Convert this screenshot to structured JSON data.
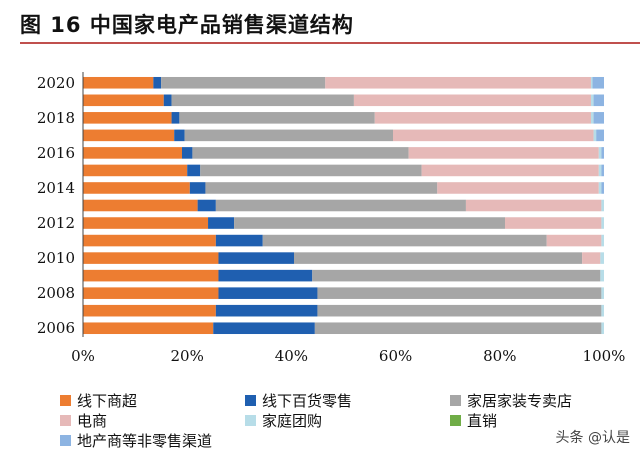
{
  "figure": {
    "title": "图 16 中国家电产品销售渠道结构",
    "watermark": "头条 @认是"
  },
  "colors": {
    "offline_mall": "#ed7d31",
    "offline_dept": "#1f5fb0",
    "appliance_store": "#a6a6a6",
    "ecommerce": "#e6b9b8",
    "group_buy": "#b7dde8",
    "direct": "#70ad47",
    "local_nonretail": "#8db4e2"
  },
  "chart_data": {
    "type": "bar",
    "orientation": "horizontal",
    "stacked": true,
    "categories": [
      "2006",
      "2007",
      "2008",
      "2009",
      "2010",
      "2011",
      "2012",
      "2013",
      "2014",
      "2015",
      "2016",
      "2017",
      "2018",
      "2019",
      "2020"
    ],
    "ytick_labels": [
      "2006",
      "2008",
      "2010",
      "2012",
      "2014",
      "2016",
      "2018",
      "2020"
    ],
    "xlim": [
      0,
      100
    ],
    "xticks": [
      "0%",
      "20%",
      "40%",
      "60%",
      "80%",
      "100%"
    ],
    "grid": false,
    "legend_position": "bottom",
    "series": [
      {
        "name": "线下商超",
        "color_key": "offline_mall",
        "values": [
          25,
          25.5,
          26,
          26,
          26,
          25.5,
          24,
          22,
          20.5,
          20,
          19,
          17.5,
          17,
          15.5,
          13.5
        ]
      },
      {
        "name": "线下百货零售",
        "color_key": "offline_dept",
        "values": [
          19.5,
          19.5,
          19,
          18,
          14.5,
          9,
          5,
          3.5,
          3,
          2.5,
          2,
          2,
          1.5,
          1.5,
          1.5
        ]
      },
      {
        "name": "家居家装专卖店",
        "color_key": "appliance_store",
        "values": [
          55,
          54.5,
          54.5,
          55.3,
          55.3,
          54.5,
          52,
          48,
          44.5,
          42.5,
          41.5,
          40,
          37.5,
          35,
          31.5
        ]
      },
      {
        "name": "电商",
        "color_key": "ecommerce",
        "values": [
          0,
          0,
          0,
          0,
          3.5,
          10.5,
          18.5,
          26,
          31,
          34,
          36.5,
          38.5,
          41.5,
          45.5,
          51
        ]
      },
      {
        "name": "家庭团购",
        "color_key": "group_buy",
        "values": [
          0.5,
          0.5,
          0.5,
          0.7,
          0.7,
          0.5,
          0.5,
          0.5,
          0.5,
          0.5,
          0.5,
          0.5,
          0.5,
          0.5,
          0.3
        ]
      },
      {
        "name": "直销",
        "color_key": "direct",
        "values": [
          0,
          0,
          0,
          0,
          0,
          0,
          0,
          0,
          0,
          0,
          0,
          0,
          0,
          0,
          0
        ]
      },
      {
        "name": "地产商等非零售渠道",
        "color_key": "local_nonretail",
        "values": [
          0,
          0,
          0,
          0,
          0,
          0,
          0,
          0,
          0.5,
          0.5,
          0.5,
          1.5,
          2,
          2,
          2.2
        ]
      }
    ]
  }
}
